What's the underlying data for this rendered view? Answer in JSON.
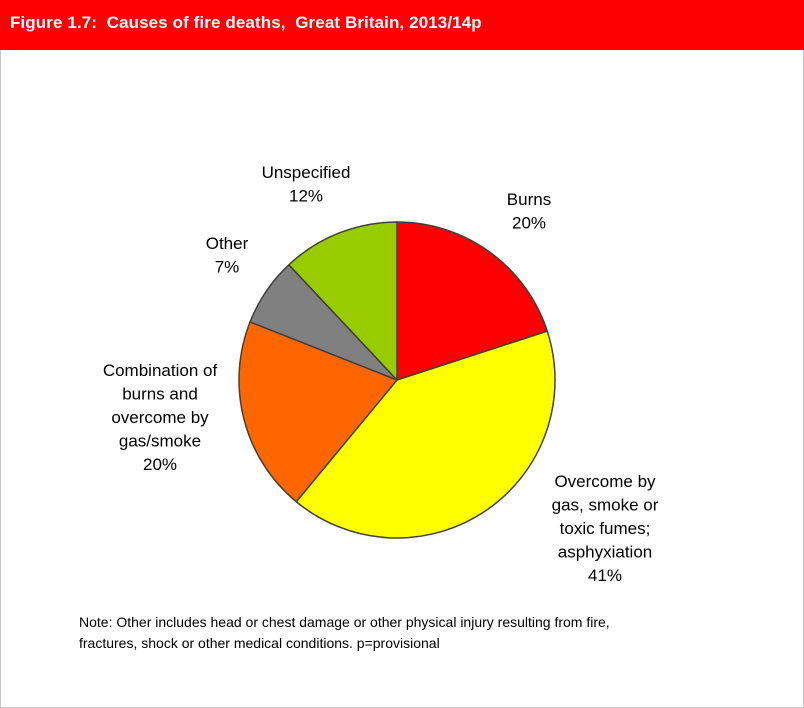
{
  "header": {
    "title": "Figure 1.7:  Causes of fire deaths,  Great Britain, 2013/14p"
  },
  "chart_data": {
    "type": "pie",
    "slices": [
      {
        "label_lines": [
          "Burns",
          "20%"
        ],
        "value": 20,
        "color": "#ff0000"
      },
      {
        "label_lines": [
          "Overcome by",
          "gas, smoke or",
          "toxic fumes;",
          "asphyxiation",
          "41%"
        ],
        "value": 41,
        "color": "#ffff00"
      },
      {
        "label_lines": [
          "Combination of",
          "burns and",
          "overcome by",
          "gas/smoke",
          "20%"
        ],
        "value": 20,
        "color": "#ff6600"
      },
      {
        "label_lines": [
          "Other",
          "7%"
        ],
        "value": 7,
        "color": "#808080"
      },
      {
        "label_lines": [
          "Unspecified",
          "12%"
        ],
        "value": 12,
        "color": "#99cc00"
      }
    ]
  },
  "note": {
    "line1": "Note: Other includes head or chest damage or other physical injury resulting from fire,",
    "line2": "fractures, shock or other medical conditions.  p=provisional"
  }
}
